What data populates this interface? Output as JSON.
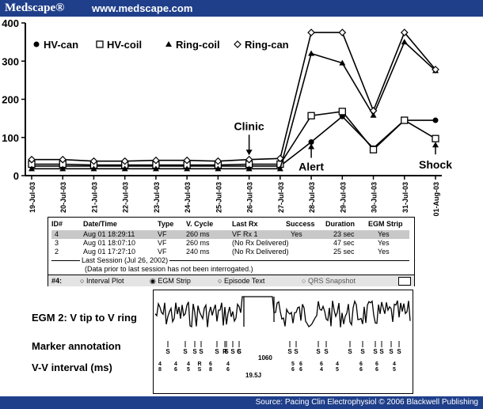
{
  "header": {
    "brand": "Medscape®",
    "site": "www.medscape.com"
  },
  "footer": {
    "source": "Source: Pacing Clin Electrophysiol © 2006 Blackwell Publishing"
  },
  "chart_data": {
    "type": "line",
    "title": "",
    "xlabel": "",
    "ylabel": "",
    "ylim": [
      0,
      400
    ],
    "yticks": [
      0,
      100,
      200,
      300,
      400
    ],
    "categories": [
      "19-Jul-03",
      "20-Jul-03",
      "21-Jul-03",
      "22-Jul-03",
      "23-Jul-03",
      "24-Jul-03",
      "25-Jul-03",
      "26-Jul-03",
      "27-Jul-03",
      "28-Jul-03",
      "29-Jul-03",
      "30-Jul-03",
      "31-Jul-03",
      "01-Aug-03"
    ],
    "legend_position": "top-left",
    "grid": false,
    "series": [
      {
        "name": "HV-can",
        "marker": "filled-circle",
        "values": [
          25,
          25,
          25,
          25,
          25,
          25,
          25,
          25,
          25,
          88,
          155,
          72,
          145,
          145
        ]
      },
      {
        "name": "HV-coil",
        "marker": "open-square",
        "values": [
          30,
          30,
          28,
          28,
          28,
          28,
          28,
          30,
          30,
          157,
          168,
          68,
          145,
          97
        ]
      },
      {
        "name": "Ring-coil",
        "marker": "filled-triangle",
        "values": [
          18,
          18,
          18,
          18,
          18,
          18,
          18,
          18,
          18,
          320,
          295,
          158,
          350,
          275
        ]
      },
      {
        "name": "Ring-can",
        "marker": "open-diamond",
        "values": [
          42,
          42,
          38,
          38,
          40,
          40,
          38,
          42,
          45,
          375,
          375,
          170,
          375,
          278
        ]
      }
    ],
    "annotations": [
      {
        "text": "Clinic",
        "at": "26-Jul-03"
      },
      {
        "text": "Alert",
        "at": "28-Jul-03"
      },
      {
        "text": "Shock",
        "at": "01-Aug-03"
      }
    ]
  },
  "episodes": {
    "headers": [
      "ID#",
      "Date/Time",
      "Type",
      "V. Cycle",
      "Last Rx",
      "Success",
      "Duration",
      "EGM Strip"
    ],
    "rows": [
      [
        "4",
        "Aug 01  18:29:11",
        "VF",
        "260 ms",
        "VF   Rx 1",
        "Yes",
        "23 sec",
        "Yes"
      ],
      [
        "3",
        "Aug 01  18:07:10",
        "VF",
        "260 ms",
        "(No Rx Delivered)",
        "",
        "47 sec",
        "Yes"
      ],
      [
        "2",
        "Aug 01  17:27:10",
        "VF",
        "240 ms",
        "(No Rx Delivered)",
        "",
        "25 sec",
        "Yes"
      ]
    ],
    "last_session": "Last Session (Jul 26, 2002)",
    "last_session_note": "(Data prior to last session has not been interrogated.)",
    "options_prefix": "#4:",
    "options": [
      "Interval Plot",
      "EGM Strip",
      "Episode Text",
      "QRS Snapshot"
    ],
    "selected_option": "EGM Strip"
  },
  "egm": {
    "label_egm": "EGM 2:  V tip to V ring",
    "label_marker": "Marker annotation",
    "label_vv": "V-V interval (ms)",
    "long_interval": "1060",
    "energy": "19.5J",
    "markers": [
      "S",
      "S",
      "S",
      "S",
      "S",
      "S",
      "S",
      "S",
      "R",
      "C",
      "S",
      "S",
      "S",
      "S",
      "S",
      "S",
      "S",
      "S",
      "S",
      "S"
    ],
    "intervals": [
      "4",
      "8",
      "4",
      "6",
      "4",
      "5",
      "R",
      "S",
      "6",
      "8",
      "4",
      "6",
      "5",
      "6",
      "6",
      "6",
      "6",
      "4",
      "4",
      "5",
      "6",
      "6",
      "6",
      "6",
      "4",
      "5"
    ]
  }
}
